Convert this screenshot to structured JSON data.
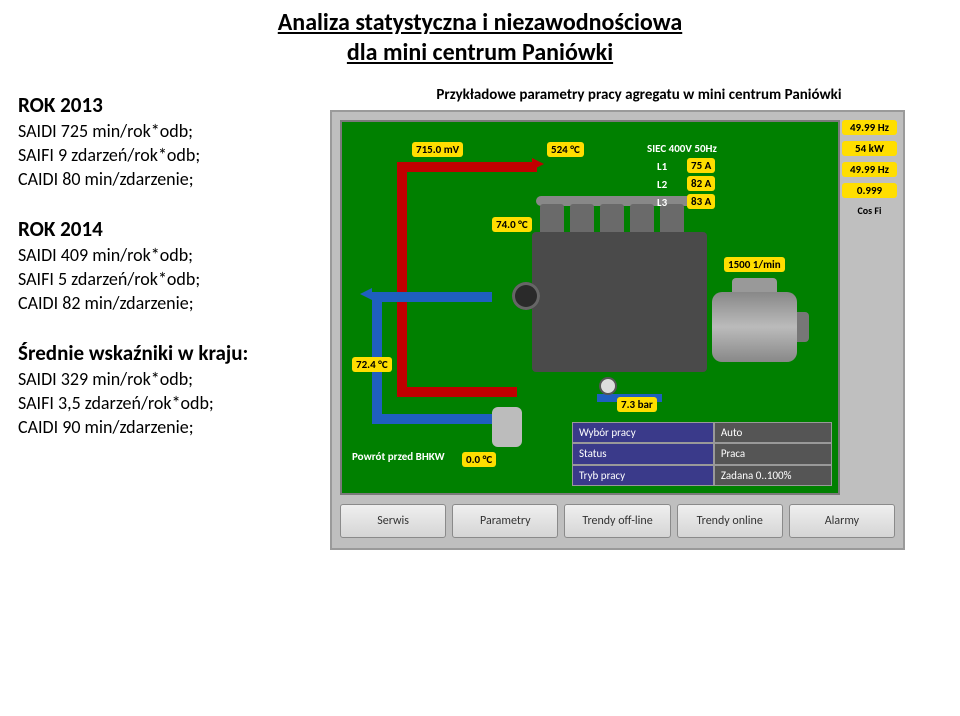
{
  "title_line1": "Analiza statystyczna i niezawodnościowa",
  "title_line2": "dla mini centrum Paniówki",
  "title_fontsize": "24px",
  "left": {
    "blocks": [
      {
        "heading": "ROK 2013",
        "lines": [
          "SAIDI 725 min/rok*odb;",
          "SAIFI 9 zdarzeń/rok*odb;",
          "CAIDI 80 min/zdarzenie;"
        ]
      },
      {
        "heading": "ROK 2014",
        "lines": [
          "SAIDI 409 min/rok*odb;",
          "SAIFI 5 zdarzeń/rok*odb;",
          "CAIDI 82 min/zdarzenie;"
        ]
      },
      {
        "heading": "Średnie wskaźniki w kraju:",
        "lines": [
          "SAIDI 329 min/rok*odb;",
          "SAIFI 3,5 zdarzeń/rok*odb;",
          "CAIDI 90 min/zdarzenie;"
        ]
      }
    ],
    "fontsize": "18px"
  },
  "right_caption": "Przykładowe parametry pracy agregatu w mini centrum Paniówki",
  "right_caption_fontsize": "15px",
  "hmi": {
    "background": "#bfbfbf",
    "panel_background": "#008000",
    "readouts": {
      "mv": "715.0  mV",
      "amb": "524  °C",
      "t_top": "74.0  °C",
      "t_left": "72.4  °C",
      "p_bar": "7.3  bar",
      "ret_before": "0.0  °C",
      "rpm": "1500  1/min"
    },
    "grid_header": "SIEC 400V 50Hz",
    "grid": {
      "L1": "75  A",
      "L2": "82  A",
      "L3": "83  A"
    },
    "side": {
      "hz": "49.99  Hz",
      "kw": "54  kW",
      "hz2": "49.99  Hz",
      "cosfi": "0.999"
    },
    "cosfi_label": "Cos Fi",
    "ret_label": "Powrót przed BHKW",
    "status": {
      "r1k": "Wybór pracy",
      "r1v": "Auto",
      "r2k": "Status",
      "r2v": "Praca",
      "r3k": "Tryb pracy",
      "r3v": "Zadana 0..100%"
    },
    "buttons": [
      "Serwis",
      "Parametry",
      "Trendy off-line",
      "Trendy online",
      "Alarmy"
    ],
    "colors": {
      "pipe_hot": "#c00000",
      "pipe_cold": "#1f5fbf",
      "engine": "#4a4a4a",
      "readout_bg": "#ffde00",
      "status_bg": "#3a3a8a"
    }
  }
}
